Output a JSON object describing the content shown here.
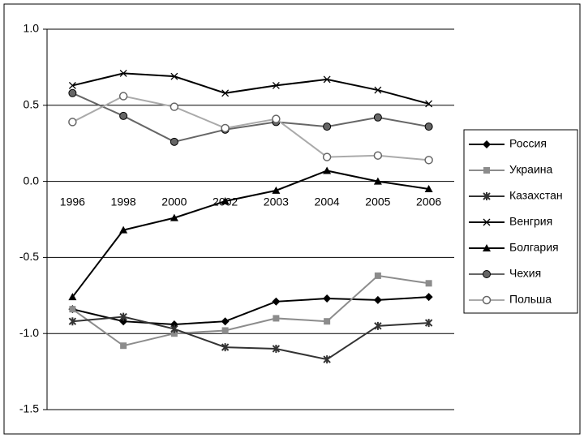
{
  "chart_data": {
    "type": "line",
    "categories": [
      "1996",
      "1998",
      "2000",
      "2002",
      "2003",
      "2004",
      "2005",
      "2006"
    ],
    "series": [
      {
        "name": "Россия",
        "color": "#000000",
        "marker": "diamond",
        "values": [
          -0.84,
          -0.92,
          -0.94,
          -0.92,
          -0.79,
          -0.77,
          -0.78,
          -0.76
        ]
      },
      {
        "name": "Украина",
        "color": "#8c8c8c",
        "marker": "square",
        "values": [
          -0.84,
          -1.08,
          -1.0,
          -0.98,
          -0.9,
          -0.92,
          -0.62,
          -0.67
        ]
      },
      {
        "name": "Казахстан",
        "color": "#333333",
        "marker": "star",
        "values": [
          -0.92,
          -0.89,
          -0.97,
          -1.09,
          -1.1,
          -1.17,
          -0.95,
          -0.93
        ]
      },
      {
        "name": "Венгрия",
        "color": "#000000",
        "marker": "x",
        "values": [
          0.63,
          0.71,
          0.69,
          0.58,
          0.63,
          0.67,
          0.6,
          0.51
        ]
      },
      {
        "name": "Болгария",
        "color": "#000000",
        "marker": "triangle",
        "values": [
          -0.76,
          -0.32,
          -0.24,
          -0.13,
          -0.06,
          0.07,
          0.0,
          -0.05
        ]
      },
      {
        "name": "Чехия",
        "color": "#666666",
        "marker": "circle",
        "values": [
          0.58,
          0.43,
          0.26,
          0.34,
          0.39,
          0.36,
          0.42,
          0.36
        ]
      },
      {
        "name": "Польша",
        "color": "#aaaaaa",
        "marker": "open-circle",
        "values": [
          0.39,
          0.56,
          0.49,
          0.35,
          0.41,
          0.16,
          0.17,
          0.14
        ]
      }
    ],
    "ylim": [
      -1.5,
      1.0
    ],
    "yticks": [
      {
        "value": 1.0,
        "label": "1.0"
      },
      0.5,
      {
        "value": 0.0,
        "label": "0.0"
      },
      -0.5,
      {
        "value": -1.0,
        "label": "-1.0"
      },
      -1.5
    ],
    "grid": true,
    "legend": "right"
  }
}
